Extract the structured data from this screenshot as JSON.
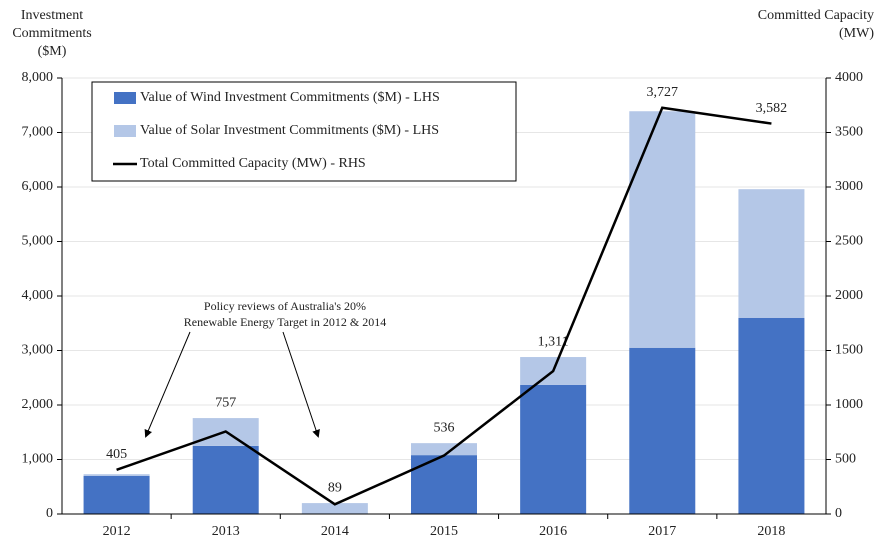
{
  "chart_data": {
    "type": "bar",
    "categories": [
      "2012",
      "2013",
      "2014",
      "2015",
      "2016",
      "2017",
      "2018"
    ],
    "y_axis_label": [
      "Investment",
      "Commitments",
      "($M)"
    ],
    "y2_axis_label": [
      "Committed Capacity",
      "(MW)"
    ],
    "annotation": [
      "Policy reviews of Australia's 20%",
      "Renewable Energy Target in 2012 & 2014"
    ],
    "stacked": true,
    "series": [
      {
        "name": "Value of Wind Investment Commitments ($M) - LHS",
        "color": "#4472c4",
        "values": [
          700,
          1250,
          0,
          1080,
          2370,
          3050,
          3600
        ]
      },
      {
        "name": "Value of Solar Investment Commitments ($M) - LHS",
        "color": "#b4c7e7",
        "values": [
          30,
          510,
          200,
          220,
          510,
          4340,
          2360
        ]
      },
      {
        "name": "Total Committed Capacity (MW) - RHS",
        "color": "#000000",
        "axis": "y2",
        "line": true,
        "values": [
          405,
          757,
          89,
          536,
          1311,
          3727,
          3582
        ],
        "value_labels": [
          "405",
          "757",
          "89",
          "536",
          "1,311",
          "3,727",
          "3,582"
        ]
      }
    ],
    "ylim": [
      0,
      8000
    ],
    "yticks": [
      0,
      {
        "value": 1000,
        "label": "1,000"
      },
      {
        "value": 2000,
        "label": "2,000"
      },
      {
        "value": 3000,
        "label": "3,000"
      },
      {
        "value": 4000,
        "label": "4,000"
      },
      {
        "value": 5000,
        "label": "5,000"
      },
      {
        "value": 6000,
        "label": "6,000"
      },
      {
        "value": 7000,
        "label": "7,000"
      },
      {
        "value": 8000,
        "label": "8,000"
      }
    ],
    "y2lim": [
      0,
      4000
    ],
    "y2ticks": [
      0,
      500,
      1000,
      1500,
      2000,
      2500,
      3000,
      3500,
      4000
    ],
    "grid": true
  }
}
